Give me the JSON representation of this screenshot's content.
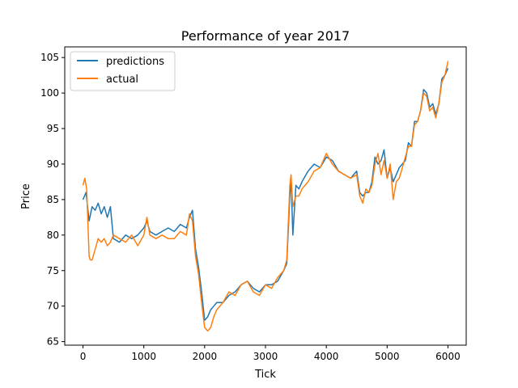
{
  "chart_data": {
    "type": "line",
    "title": "Performance of year 2017",
    "xlabel": "Tick",
    "ylabel": "Price",
    "xlim": [
      -300,
      6300
    ],
    "ylim": [
      64.5,
      106.5
    ],
    "xticks": [
      0,
      1000,
      2000,
      3000,
      4000,
      5000,
      6000
    ],
    "yticks": [
      65,
      70,
      75,
      80,
      85,
      90,
      95,
      100,
      105
    ],
    "grid": false,
    "legend_position": "top-left",
    "series": [
      {
        "name": "predictions",
        "color": "#1f77b4",
        "x": [
          0,
          50,
          100,
          150,
          200,
          250,
          300,
          350,
          400,
          450,
          500,
          600,
          700,
          800,
          900,
          1000,
          1050,
          1100,
          1200,
          1300,
          1400,
          1500,
          1600,
          1700,
          1750,
          1800,
          1850,
          1900,
          1950,
          2000,
          2050,
          2100,
          2150,
          2200,
          2300,
          2400,
          2500,
          2600,
          2700,
          2800,
          2900,
          3000,
          3100,
          3200,
          3300,
          3350,
          3400,
          3420,
          3450,
          3500,
          3550,
          3600,
          3700,
          3800,
          3900,
          4000,
          4100,
          4200,
          4300,
          4400,
          4500,
          4550,
          4600,
          4650,
          4700,
          4750,
          4800,
          4850,
          4900,
          4950,
          5000,
          5050,
          5100,
          5150,
          5200,
          5250,
          5300,
          5350,
          5400,
          5450,
          5500,
          5550,
          5600,
          5650,
          5700,
          5750,
          5800,
          5850,
          5900,
          5950,
          6000
        ],
        "y": [
          85.0,
          86.0,
          82.0,
          84.0,
          83.5,
          84.5,
          83.0,
          84.0,
          82.5,
          84.0,
          79.5,
          79.0,
          80.0,
          79.5,
          80.0,
          81.0,
          82.0,
          80.5,
          80.0,
          80.5,
          81.0,
          80.5,
          81.5,
          81.0,
          82.5,
          83.5,
          78.0,
          75.5,
          72.0,
          68.0,
          68.5,
          69.5,
          70.0,
          70.5,
          70.5,
          71.5,
          72.0,
          73.0,
          73.5,
          72.5,
          72.0,
          73.0,
          73.0,
          73.5,
          75.0,
          76.0,
          85.5,
          88.0,
          80.0,
          87.0,
          86.5,
          87.5,
          89.0,
          90.0,
          89.5,
          91.0,
          90.5,
          89.0,
          88.5,
          88.0,
          89.0,
          86.0,
          85.5,
          86.0,
          86.0,
          87.5,
          91.0,
          90.0,
          90.5,
          92.0,
          88.0,
          89.5,
          87.5,
          88.5,
          89.5,
          90.0,
          90.5,
          93.0,
          92.5,
          96.0,
          96.0,
          97.5,
          100.5,
          100.0,
          98.0,
          98.5,
          97.0,
          98.5,
          102.0,
          102.5,
          103.5
        ]
      },
      {
        "name": "actual",
        "color": "#ff7f0e",
        "x": [
          0,
          30,
          60,
          100,
          120,
          150,
          200,
          250,
          300,
          350,
          400,
          450,
          500,
          600,
          700,
          800,
          900,
          1000,
          1050,
          1100,
          1200,
          1300,
          1400,
          1500,
          1600,
          1700,
          1750,
          1800,
          1850,
          1900,
          1950,
          2000,
          2050,
          2100,
          2150,
          2200,
          2300,
          2400,
          2500,
          2600,
          2700,
          2800,
          2900,
          3000,
          3100,
          3200,
          3300,
          3350,
          3400,
          3420,
          3450,
          3500,
          3550,
          3600,
          3700,
          3800,
          3900,
          4000,
          4100,
          4200,
          4300,
          4400,
          4500,
          4550,
          4600,
          4650,
          4700,
          4750,
          4800,
          4850,
          4900,
          4950,
          5000,
          5050,
          5100,
          5150,
          5200,
          5250,
          5300,
          5350,
          5400,
          5450,
          5500,
          5550,
          5600,
          5650,
          5700,
          5750,
          5800,
          5850,
          5900,
          5950,
          6000
        ],
        "y": [
          87.0,
          88.0,
          86.5,
          77.0,
          76.5,
          76.5,
          78.0,
          79.5,
          79.0,
          79.5,
          78.5,
          79.0,
          80.0,
          79.5,
          79.0,
          80.0,
          78.5,
          80.0,
          82.5,
          80.0,
          79.5,
          80.0,
          79.5,
          79.5,
          80.5,
          80.0,
          83.0,
          82.0,
          77.0,
          74.5,
          70.5,
          67.0,
          66.5,
          67.0,
          68.5,
          69.5,
          70.5,
          72.0,
          71.5,
          73.0,
          73.5,
          72.0,
          71.5,
          73.0,
          72.5,
          74.0,
          75.0,
          76.5,
          87.0,
          88.5,
          84.0,
          85.5,
          85.5,
          86.5,
          87.5,
          89.0,
          89.5,
          91.5,
          90.0,
          89.0,
          88.5,
          88.0,
          88.5,
          85.5,
          84.5,
          86.5,
          86.0,
          87.0,
          90.0,
          91.5,
          88.5,
          90.5,
          88.0,
          90.0,
          85.0,
          87.5,
          88.0,
          89.5,
          91.0,
          92.5,
          92.5,
          95.5,
          96.0,
          97.5,
          100.0,
          99.5,
          97.5,
          98.0,
          96.5,
          98.5,
          101.5,
          102.5,
          104.5
        ]
      }
    ]
  }
}
